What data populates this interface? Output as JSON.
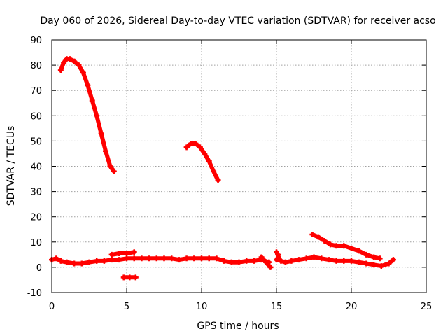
{
  "chart_data": {
    "type": "scatter",
    "title": "Day 060 of 2026, Sidereal Day-to-day VTEC variation (SDTVAR) for receiver acso",
    "xlabel": "GPS time / hours",
    "ylabel": "SDTVAR / TECUs",
    "xlim": [
      0,
      25
    ],
    "ylim": [
      -10,
      90
    ],
    "xticks": [
      0,
      5,
      10,
      15,
      20,
      25
    ],
    "yticks": [
      -10,
      0,
      10,
      20,
      30,
      40,
      50,
      60,
      70,
      80,
      90
    ],
    "grid": true,
    "marker_color": "#ff0000",
    "series": [
      {
        "name": "arc-1",
        "x": [
          0.6,
          0.8,
          1.0,
          1.2,
          1.5,
          1.8,
          2.1,
          2.4,
          2.7,
          3.0,
          3.3,
          3.6,
          3.9,
          4.15
        ],
        "y": [
          78,
          81,
          82.5,
          82.5,
          81.5,
          80,
          77,
          72,
          66,
          60,
          53,
          46,
          40,
          38
        ]
      },
      {
        "name": "arc-2",
        "x": [
          9.0,
          9.3,
          9.6,
          9.9,
          10.2,
          10.5,
          10.8,
          11.1
        ],
        "y": [
          47.5,
          49,
          49,
          47.5,
          45,
          42,
          38,
          34.5
        ]
      },
      {
        "name": "arc-3",
        "x": [
          17.4,
          17.8,
          18.2,
          18.6,
          19.0,
          19.5,
          20.0,
          20.5,
          21.0,
          21.5,
          21.9
        ],
        "y": [
          13,
          12,
          10.5,
          9,
          8.5,
          8.5,
          7.5,
          6.5,
          5,
          4,
          3.5
        ]
      },
      {
        "name": "band-1",
        "x": [
          0,
          0.3,
          0.6,
          1.0,
          1.5,
          2.0,
          2.5,
          3.0,
          3.5,
          4.0,
          4.5,
          5.0,
          5.5,
          6.0,
          6.5,
          7.0,
          7.5,
          8.0,
          8.5,
          9.0,
          9.5,
          10.0,
          10.5,
          11.0,
          11.5,
          12.0,
          12.5,
          13.0,
          13.5,
          14.0,
          14.5
        ],
        "y": [
          3,
          3.5,
          2.5,
          2,
          1.5,
          1.5,
          2,
          2.5,
          2.5,
          3,
          3,
          3.5,
          3.5,
          3.5,
          3.5,
          3.5,
          3.5,
          3.5,
          3,
          3.5,
          3.5,
          3.5,
          3.5,
          3.5,
          2.5,
          2,
          2,
          2.5,
          2.5,
          3,
          2
        ]
      },
      {
        "name": "band-2",
        "x": [
          15.0,
          15.3,
          15.6,
          16.0,
          16.5,
          17.0,
          17.5,
          18.0,
          18.5,
          19.0,
          19.5,
          20.0,
          20.5,
          21.0,
          21.5,
          22.0,
          22.5,
          22.8
        ],
        "y": [
          3,
          2.5,
          2,
          2.5,
          3,
          3.5,
          4,
          3.5,
          3,
          2.5,
          2.5,
          2.5,
          2,
          1.5,
          1,
          0.5,
          1.5,
          3
        ]
      },
      {
        "name": "segment-1",
        "x": [
          4.0,
          4.5,
          5.0,
          5.5
        ],
        "y": [
          5,
          5.5,
          5.5,
          6
        ]
      },
      {
        "name": "segment-2",
        "x": [
          4.8,
          5.2,
          5.6
        ],
        "y": [
          -4,
          -4,
          -4
        ]
      },
      {
        "name": "segment-3",
        "x": [
          14.0,
          14.3,
          14.6
        ],
        "y": [
          4,
          2,
          0
        ]
      },
      {
        "name": "segment-4",
        "x": [
          15.0,
          15.1,
          15.2
        ],
        "y": [
          6,
          5,
          3
        ]
      }
    ]
  }
}
